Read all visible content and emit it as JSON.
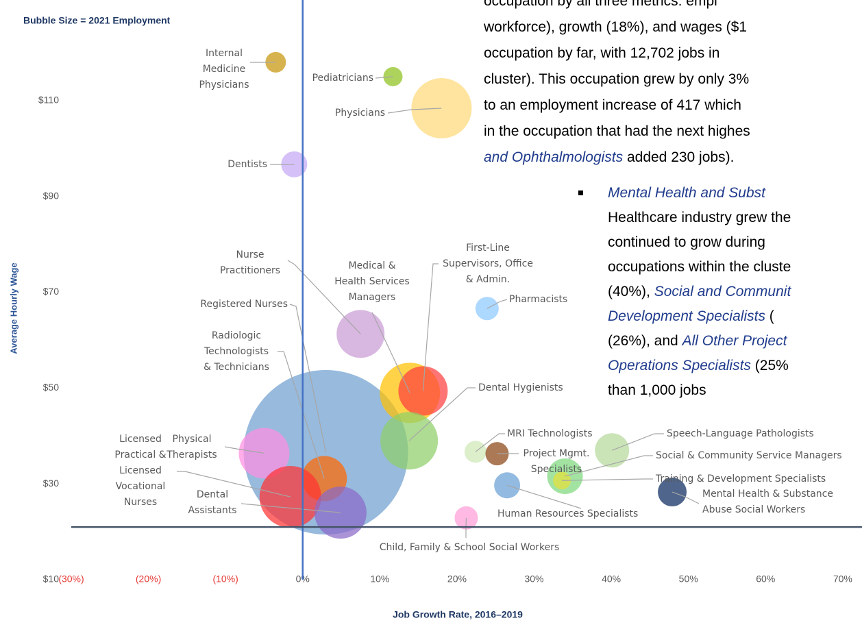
{
  "chart_data": {
    "type": "bubble",
    "subtitle": "Bubble Size = 2021 Employment",
    "y_label": "Average Hourly Wage",
    "x_label": "Job Growth Rate, 2016–2019",
    "xlim": [
      -30,
      72.5
    ],
    "ylim": [
      10,
      131
    ],
    "xticks": [
      {
        "value": -30,
        "label": "(30%)"
      },
      {
        "value": -20,
        "label": "(20%)"
      },
      {
        "value": -10,
        "label": "(10%)"
      },
      {
        "value": 0,
        "label": "0%"
      },
      {
        "value": 10,
        "label": "10%"
      },
      {
        "value": 20,
        "label": "20%"
      },
      {
        "value": 30,
        "label": "30%"
      },
      {
        "value": 40,
        "label": "40%"
      },
      {
        "value": 50,
        "label": "50%"
      },
      {
        "value": 60,
        "label": "60%"
      },
      {
        "value": 70,
        "label": "70%"
      }
    ],
    "yticks": [
      {
        "value": 10,
        "label": "$10"
      },
      {
        "value": 30,
        "label": "$30"
      },
      {
        "value": 50,
        "label": "$50"
      },
      {
        "value": 70,
        "label": "$70"
      },
      {
        "value": 90,
        "label": "$90"
      },
      {
        "value": 110,
        "label": "$110"
      }
    ],
    "negative_tick_color": "#e53935",
    "tick_color": "#595959",
    "grid": false,
    "reference_lines": {
      "x": 0,
      "y": 21,
      "x_color": "#4472c4",
      "y_color": "#44546a"
    },
    "series": [
      {
        "name": "Registered Nurses",
        "color": "#6fa0d0",
        "x": [
          3
        ],
        "values": [
          36.6
        ],
        "sizes": [
          12702
        ]
      },
      {
        "name": "Internal\nMedicine\nPhysicians",
        "color": "#c8960c",
        "x": [
          -3.5
        ],
        "values": [
          118
        ],
        "sizes": [
          198
        ]
      },
      {
        "name": "Pediatricians",
        "color": "#8dc21f",
        "x": [
          11.7
        ],
        "values": [
          115
        ],
        "sizes": [
          173
        ]
      },
      {
        "name": "Physicians",
        "color": "#ffd97a",
        "x": [
          18
        ],
        "values": [
          108.4
        ],
        "sizes": [
          1708
        ]
      },
      {
        "name": "Dentists",
        "color": "#c5a9f5",
        "x": [
          -1.1
        ],
        "values": [
          96.7
        ],
        "sizes": [
          318
        ]
      },
      {
        "name": "Nurse\nPractitioners",
        "color": "#c99bd6",
        "x": [
          7.5
        ],
        "values": [
          61.3
        ],
        "sizes": [
          1080
        ]
      },
      {
        "name": "Medical &\nHealth Services\nManagers",
        "color": "#ffc000",
        "x": [
          13.9
        ],
        "values": [
          49
        ],
        "sizes": [
          1708
        ]
      },
      {
        "name": "First-Line\nSupervisors, Office\n& Admin.",
        "color": "#ff4040",
        "x": [
          15.6
        ],
        "values": [
          49.4
        ],
        "sizes": [
          1143
        ]
      },
      {
        "name": "Pharmacists",
        "color": "#8ec9ff",
        "x": [
          23.9
        ],
        "values": [
          66.6
        ],
        "sizes": [
          255
        ]
      },
      {
        "name": "Dental Hygienists",
        "color": "#8fcf6a",
        "x": [
          13.8
        ],
        "values": [
          39
        ],
        "sizes": [
          1556
        ]
      },
      {
        "name": "MRI Technologists",
        "color": "#cfe8b5",
        "x": [
          22.4
        ],
        "values": [
          36.7
        ],
        "sizes": [
          226
        ]
      },
      {
        "name": "Project Mgmt.\nSpecialists",
        "color": "#8b4513",
        "x": [
          25.2
        ],
        "values": [
          36.3
        ],
        "sizes": [
          255
        ]
      },
      {
        "name": "Speech-Language Pathologists",
        "color": "#b5d99c",
        "x": [
          40.1
        ],
        "values": [
          37
        ],
        "sizes": [
          551
        ]
      },
      {
        "name": "Social & Community Service Managers",
        "color": "#7ed87e",
        "x": [
          34
        ],
        "values": [
          31.6
        ],
        "sizes": [
          596
        ]
      },
      {
        "name": "Training & Development Specialists",
        "color": "#e5e03a",
        "x": [
          33.6
        ],
        "values": [
          30.7
        ],
        "sizes": [
          149
        ]
      },
      {
        "name": "Human Resources Specialists",
        "color": "#6a9fd4",
        "x": [
          26.5
        ],
        "values": [
          29.7
        ],
        "sizes": [
          318
        ]
      },
      {
        "name": "Mental Health & Substance\nAbuse Social Workers",
        "color": "#0b2a5e",
        "x": [
          47.9
        ],
        "values": [
          28.3
        ],
        "sizes": [
          389
        ]
      },
      {
        "name": "Child, Family & School Social Workers",
        "color": "#ff9ed8",
        "x": [
          21.2
        ],
        "values": [
          22.9
        ],
        "sizes": [
          255
        ]
      },
      {
        "name": "Physical\nTherapists",
        "color": "#ff8fe0",
        "x": [
          -5
        ],
        "values": [
          36.4
        ],
        "sizes": [
          1207
        ]
      },
      {
        "name": "Radiologic\nTechnologists\n& Technicians",
        "color": "#ff6600",
        "x": [
          2.8
        ],
        "values": [
          31.1
        ],
        "sizes": [
          960
        ]
      },
      {
        "name": "Licensed\nPractical &\nLicensed\nVocational\nNurses",
        "color": "#ff3333",
        "x": [
          -1.6
        ],
        "values": [
          27.3
        ],
        "sizes": [
          1786
        ]
      },
      {
        "name": "Dental\nAssistants",
        "color": "#8a6ac8",
        "x": [
          4.9
        ],
        "values": [
          24
        ],
        "sizes": [
          1274
        ]
      }
    ]
  },
  "document": {
    "paragraph": [
      [
        {
          "text": "occupation by all three metrics: empl"
        }
      ],
      [
        {
          "text": "workforce), growth (18%), and wages ($1"
        }
      ],
      [
        {
          "text": "occupation by far, with 12,702 jobs in"
        }
      ],
      [
        {
          "text": "cluster). This occupation grew by only 3%"
        }
      ],
      [
        {
          "text": "to an employment increase of 417 which"
        }
      ],
      [
        {
          "text": "in the occupation that had the next highes"
        }
      ],
      [
        {
          "text": "and Ophthalmologists",
          "style": "italic"
        },
        {
          "text": " added 230 jobs)."
        }
      ]
    ],
    "bullet": [
      [
        {
          "text": "Mental Health and Subst",
          "style": "italic"
        }
      ],
      [
        {
          "text": "Healthcare industry grew the"
        }
      ],
      [
        {
          "text": "continued to grow during"
        }
      ],
      [
        {
          "text": "occupations within the cluste"
        }
      ],
      [
        {
          "text": "(40%), "
        },
        {
          "text": "Social and Communit",
          "style": "italic"
        }
      ],
      [
        {
          "text": "Development Specialists",
          "style": "italic"
        },
        {
          "text": " ("
        }
      ],
      [
        {
          "text": "(26%), and "
        },
        {
          "text": "All Other Project",
          "style": "italic"
        }
      ],
      [
        {
          "text": "Operations Specialists",
          "style": "italic"
        },
        {
          "text": " (25%"
        }
      ],
      [
        {
          "text": "than 1,000 jobs"
        }
      ]
    ]
  }
}
